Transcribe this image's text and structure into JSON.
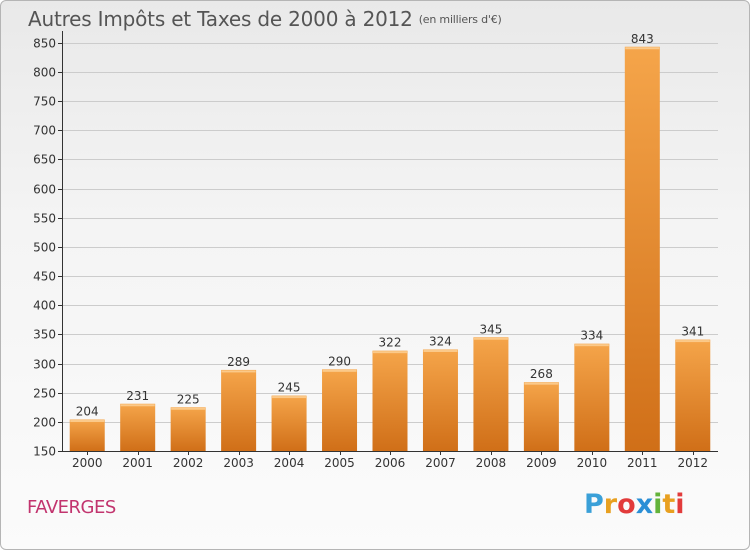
{
  "header": {
    "title": "Autres Impôts et Taxes de 2000 à 2012",
    "subtitle": "(en milliers d'€)"
  },
  "footer": {
    "city": "FAVERGES",
    "logo_letters": [
      "P",
      "r",
      "o",
      "x",
      "i",
      "t",
      "i"
    ],
    "logo_colors": [
      "#3aa0d8",
      "#e8a020",
      "#e23b3b",
      "#2b8fd6",
      "#63b33b",
      "#e8a020",
      "#e23b3b"
    ]
  },
  "chart_data": {
    "type": "bar",
    "categories": [
      "2000",
      "2001",
      "2002",
      "2003",
      "2004",
      "2005",
      "2006",
      "2007",
      "2008",
      "2009",
      "2010",
      "2011",
      "2012"
    ],
    "values": [
      204,
      231,
      225,
      289,
      245,
      290,
      322,
      324,
      345,
      268,
      334,
      843,
      341
    ],
    "ylim": [
      150,
      870
    ],
    "yticks": [
      150,
      200,
      250,
      300,
      350,
      400,
      450,
      500,
      550,
      600,
      650,
      700,
      750,
      800,
      850
    ],
    "grid": true,
    "colors": {
      "bar_light": "#f5a54a",
      "bar_dark": "#d06f18",
      "grid": "#cccccc",
      "axis": "#333333"
    }
  }
}
